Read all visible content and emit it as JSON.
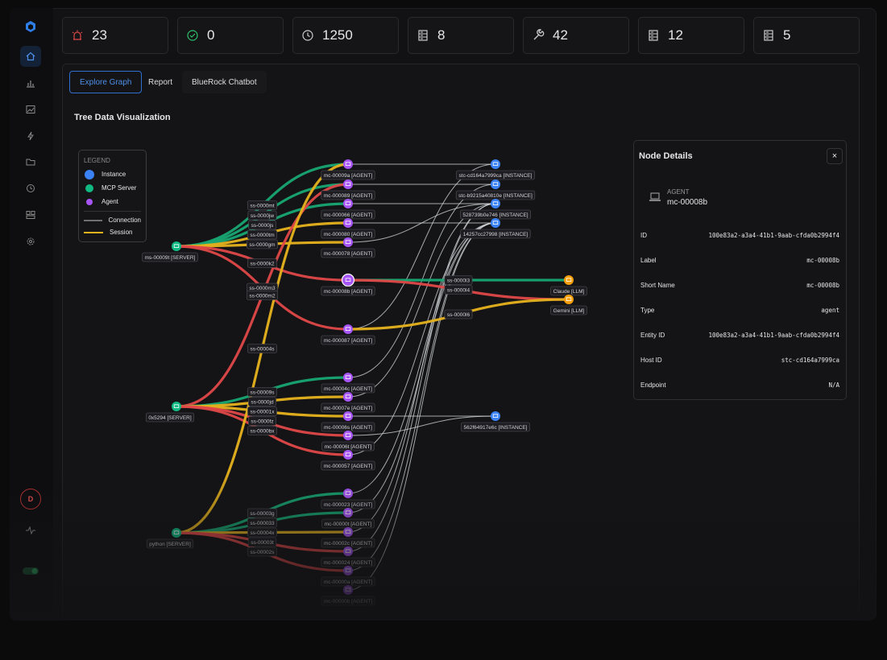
{
  "stats": [
    23,
    0,
    1250,
    8,
    42,
    12,
    5
  ],
  "tabs": [
    "Explore Graph",
    "Report",
    "BlueRock Chatbot"
  ],
  "section_title": "Tree Data Visualization",
  "legend": {
    "title": "LEGEND",
    "items": [
      "Instance",
      "MCP Server",
      "Agent",
      "Connection",
      "Session"
    ]
  },
  "graph": {
    "servers": [
      "ms-00009t [SERVER]",
      "0x5294 [SERVER]",
      "python [SERVER]"
    ],
    "agents": [
      "mc-00009a [AGENT]",
      "mc-000089 [AGENT]",
      "mc-000066 [AGENT]",
      "mc-000080 [AGENT]",
      "mc-000078 [AGENT]",
      "mc-00008b [AGENT]",
      "mc-000087 [AGENT]",
      "mc-00004c [AGENT]",
      "mc-00007e [AGENT]",
      "mc-00006s [AGENT]",
      "mc-00006t [AGENT]",
      "mc-000057 [AGENT]",
      "mc-000023 [AGENT]",
      "mc-00000t [AGENT]",
      "mc-00002c [AGENT]",
      "mc-000024 [AGENT]",
      "mc-00000a [AGENT]",
      "mc-00000b [AGENT]"
    ],
    "instances": [
      "stc-cd164a7999ca [INSTANCE]",
      "stc-b9215a40810e [INSTANCE]",
      "528739b0e746 [INSTANCE]",
      "14257cc27998 [INSTANCE]",
      "562f64917e6c [INSTANCE]"
    ],
    "llms": [
      "Claude [LLM]",
      "Gemini [LLM]"
    ],
    "sessions": [
      {
        "label": "ss-0000mt",
        "from": "servers.0",
        "to": "agents.0",
        "color": "#18a673"
      },
      {
        "label": "ss-0000jw",
        "from": "servers.0",
        "to": "agents.1",
        "color": "#18a673"
      },
      {
        "label": "ss-0000js",
        "from": "servers.0",
        "to": "agents.2",
        "color": "#18a673"
      },
      {
        "label": "ss-0000tm",
        "from": "servers.0",
        "to": "agents.3",
        "color": "#e6b21e"
      },
      {
        "label": "ss-0000gm",
        "from": "servers.0",
        "to": "agents.4",
        "color": "#e6b21e"
      },
      {
        "label": "ss-0000k2",
        "from": "servers.0",
        "to": "agents.5",
        "color": "#e04848"
      },
      {
        "label": "ss-0000m3",
        "from": "servers.0",
        "to": "agents.6",
        "color": "#e04848"
      },
      {
        "label": "ss-0000m2",
        "from": "servers.1",
        "to": "agents.1",
        "color": "#e04848"
      },
      {
        "label": "ss-00009s",
        "from": "servers.1",
        "to": "agents.7",
        "color": "#18a673"
      },
      {
        "label": "ss-0000jd",
        "from": "servers.1",
        "to": "agents.8",
        "color": "#e6b21e"
      },
      {
        "label": "ss-00001x",
        "from": "servers.1",
        "to": "agents.9",
        "color": "#e6b21e"
      },
      {
        "label": "ss-0000fz",
        "from": "servers.1",
        "to": "agents.10",
        "color": "#e04848"
      },
      {
        "label": "ss-0000bx",
        "from": "servers.1",
        "to": "agents.11",
        "color": "#e04848"
      },
      {
        "label": "ss-00003g",
        "from": "servers.2",
        "to": "agents.12",
        "color": "#18a673"
      },
      {
        "label": "ss-000033",
        "from": "servers.2",
        "to": "agents.13",
        "color": "#18a673"
      },
      {
        "label": "ss-00004x",
        "from": "servers.2",
        "to": "agents.14",
        "color": "#e6b21e"
      },
      {
        "label": "ss-00003t",
        "from": "servers.2",
        "to": "agents.15",
        "color": "#e04848"
      },
      {
        "label": "ss-00004s",
        "from": "servers.2",
        "to": "agents.0",
        "color": "#e6b21e"
      },
      {
        "label": "ss-00002s",
        "from": "servers.2",
        "to": "agents.16",
        "color": "#e04848"
      },
      {
        "label": "ss-0000l3",
        "from": "agents.5",
        "to": "llms.0",
        "color": "#18a673"
      },
      {
        "label": "ss-0000l4",
        "from": "agents.5",
        "to": "llms.1",
        "color": "#e04848"
      },
      {
        "label": "ss-0000l6",
        "from": "agents.6",
        "to": "llms.1",
        "color": "#e6b21e"
      }
    ],
    "connections": [
      [
        "agents.0",
        "instances.0"
      ],
      [
        "agents.1",
        "instances.1"
      ],
      [
        "agents.2",
        "instances.2"
      ],
      [
        "agents.3",
        "instances.3"
      ],
      [
        "agents.4",
        "instances.2"
      ],
      [
        "agents.6",
        "instances.0"
      ],
      [
        "agents.7",
        "instances.1"
      ],
      [
        "agents.8",
        "instances.2"
      ],
      [
        "agents.9",
        "instances.4"
      ],
      [
        "agents.10",
        "instances.4"
      ],
      [
        "agents.11",
        "instances.3"
      ],
      [
        "agents.12",
        "instances.3"
      ],
      [
        "agents.13",
        "instances.3"
      ],
      [
        "agents.14",
        "instances.2"
      ],
      [
        "agents.15",
        "instances.2"
      ],
      [
        "agents.16",
        "instances.3"
      ],
      [
        "agents.17",
        "instances.3"
      ]
    ]
  },
  "details": {
    "title": "Node Details",
    "close": "×",
    "kind": "AGENT",
    "name": "mc-00008b",
    "fields": [
      [
        "ID",
        "100e83a2-a3a4-41b1-9aab-cfda0b2994f4"
      ],
      [
        "Label",
        "mc-00008b"
      ],
      [
        "Short Name",
        "mc-00008b"
      ],
      [
        "Type",
        "agent"
      ],
      [
        "Entity ID",
        "100e83a2-a3a4-41b1-9aab-cfda0b2994f4"
      ],
      [
        "Host ID",
        "stc-cd164a7999ca"
      ],
      [
        "Endpoint",
        "N/A"
      ]
    ]
  },
  "avatar": "D"
}
